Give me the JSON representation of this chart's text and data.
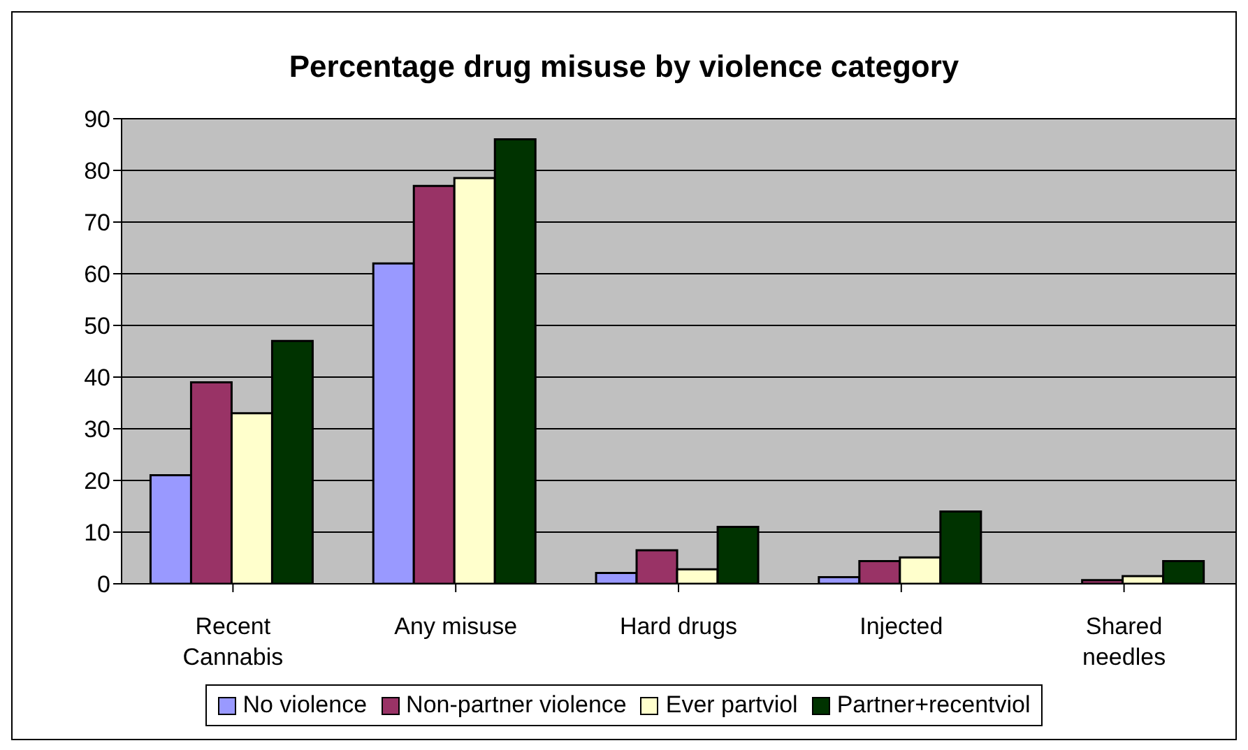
{
  "chart_data": {
    "type": "bar",
    "title": "Percentage drug misuse by violence category",
    "categories": [
      "Recent Cannabis",
      "Any misuse",
      "Hard drugs",
      "Injected",
      "Shared needles"
    ],
    "series": [
      {
        "name": "No violence",
        "color": "#9999ff",
        "values": [
          21,
          62,
          2.1,
          1.3,
          0
        ]
      },
      {
        "name": "Non-partner violence",
        "color": "#993366",
        "values": [
          39,
          77,
          6.5,
          4.4,
          0.7
        ]
      },
      {
        "name": "Ever partviol",
        "color": "#ffffcc",
        "values": [
          33,
          78.5,
          2.8,
          5.1,
          1.5
        ]
      },
      {
        "name": "Partner+recentviol",
        "color": "#003300",
        "values": [
          47,
          86,
          11,
          14,
          4.4
        ]
      }
    ],
    "ylim": [
      0,
      90
    ],
    "yticks": [
      0,
      10,
      20,
      30,
      40,
      50,
      60,
      70,
      80,
      90
    ],
    "grid": "y",
    "legend": "bottom"
  }
}
